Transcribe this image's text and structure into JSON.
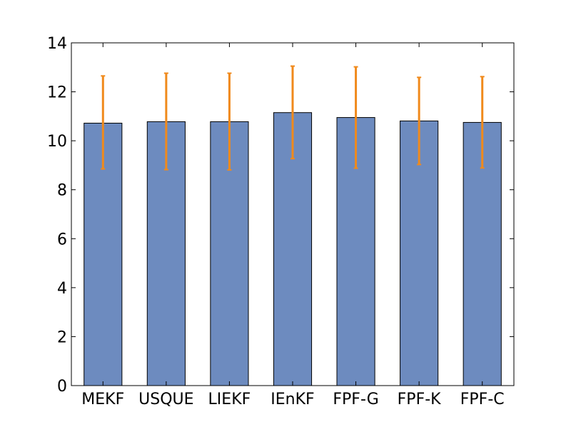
{
  "chart_data": {
    "type": "bar",
    "title": "",
    "xlabel": "",
    "ylabel": "",
    "categories": [
      "MEKF",
      "USQUE",
      "LIEKF",
      "IEnKF",
      "FPF-G",
      "FPF-K",
      "FPF-C"
    ],
    "values": [
      10.72,
      10.78,
      10.78,
      11.15,
      10.95,
      10.81,
      10.75
    ],
    "error_bars": [
      {
        "low": 8.85,
        "high": 12.65
      },
      {
        "low": 8.82,
        "high": 12.76
      },
      {
        "low": 8.81,
        "high": 12.76
      },
      {
        "low": 9.27,
        "high": 13.05
      },
      {
        "low": 8.88,
        "high": 13.02
      },
      {
        "low": 9.03,
        "high": 12.59
      },
      {
        "low": 8.89,
        "high": 12.62
      }
    ],
    "ylim": [
      0,
      14
    ],
    "yticks": [
      "0",
      "2",
      "4",
      "6",
      "8",
      "10",
      "12",
      "14"
    ],
    "grid": false,
    "legend": "none",
    "colors": {
      "bar_fill": "#6d8bbf",
      "bar_edge": "#000000",
      "error_bar": "#f08a1c",
      "axes": "#000000"
    }
  }
}
